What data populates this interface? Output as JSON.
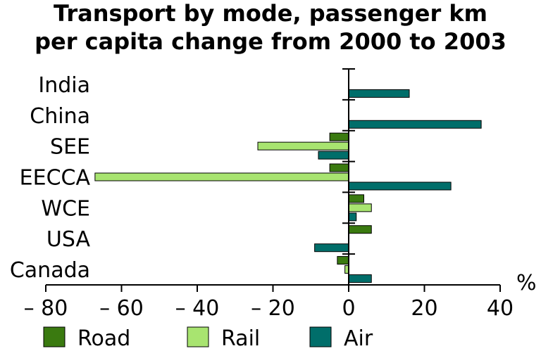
{
  "chart_data": {
    "type": "bar",
    "orientation": "horizontal",
    "title_lines": [
      "Transport by mode, passenger km",
      "per capita change from 2000 to 2003"
    ],
    "unit_label": "%",
    "categories": [
      "India",
      "China",
      "SEE",
      "EECCA",
      "WCE",
      "USA",
      "Canada"
    ],
    "series": [
      {
        "name": "Road",
        "color": "#3a7a10",
        "values": [
          null,
          null,
          -5,
          -5,
          4,
          6,
          -3
        ]
      },
      {
        "name": "Rail",
        "color": "#a8e470",
        "values": [
          null,
          null,
          -24,
          -67,
          6,
          null,
          -1
        ]
      },
      {
        "name": "Air",
        "color": "#006e6a",
        "values": [
          16,
          35,
          -8,
          27,
          2,
          -9,
          6
        ]
      }
    ],
    "xlim": [
      -80,
      40
    ],
    "x_ticks": [
      -80,
      -60,
      -40,
      -20,
      0,
      20,
      40
    ],
    "x_tick_labels": [
      "– 80",
      "– 60",
      "– 40",
      "– 20",
      "0",
      "20",
      "40"
    ],
    "grid": false,
    "legend_position": "bottom"
  }
}
